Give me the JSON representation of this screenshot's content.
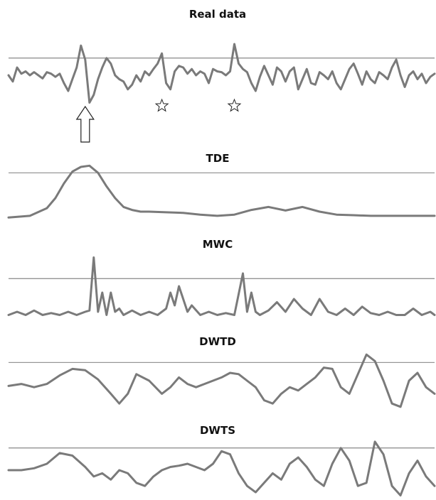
{
  "chart_data": [
    {
      "type": "line",
      "title": "Real data",
      "xlim": [
        0,
        100
      ],
      "ylim": [
        0,
        1
      ],
      "threshold": 0.62,
      "annotations": [
        {
          "kind": "arrow-up",
          "x": 18
        },
        {
          "kind": "star",
          "x": 36
        },
        {
          "kind": "star",
          "x": 53
        }
      ],
      "x": [
        0,
        1,
        2,
        3,
        4,
        5,
        6,
        7,
        8,
        9,
        10,
        11,
        12,
        13,
        14,
        15,
        16,
        17,
        18,
        19,
        20,
        21,
        22,
        23,
        24,
        25,
        26,
        27,
        28,
        29,
        30,
        31,
        32,
        33,
        34,
        35,
        36,
        37,
        38,
        39,
        40,
        41,
        42,
        43,
        44,
        45,
        46,
        47,
        48,
        49,
        50,
        51,
        52,
        53,
        54,
        55,
        56,
        57,
        58,
        59,
        60,
        61,
        62,
        63,
        64,
        65,
        66,
        67,
        68,
        69,
        70,
        71,
        72,
        73,
        74,
        75,
        76,
        77,
        78,
        79,
        80,
        81,
        82,
        83,
        84,
        85,
        86,
        87,
        88,
        89,
        90,
        91,
        92,
        93,
        94,
        95,
        96,
        97,
        98,
        99,
        100
      ],
      "values": [
        0.4,
        0.32,
        0.5,
        0.42,
        0.45,
        0.4,
        0.44,
        0.4,
        0.36,
        0.44,
        0.42,
        0.38,
        0.42,
        0.3,
        0.2,
        0.35,
        0.5,
        0.78,
        0.6,
        0.05,
        0.15,
        0.35,
        0.5,
        0.62,
        0.55,
        0.4,
        0.35,
        0.32,
        0.22,
        0.28,
        0.4,
        0.32,
        0.45,
        0.4,
        0.48,
        0.55,
        0.68,
        0.3,
        0.22,
        0.45,
        0.52,
        0.5,
        0.42,
        0.48,
        0.4,
        0.45,
        0.42,
        0.3,
        0.48,
        0.45,
        0.44,
        0.4,
        0.45,
        0.8,
        0.55,
        0.48,
        0.44,
        0.3,
        0.2,
        0.38,
        0.52,
        0.4,
        0.28,
        0.5,
        0.45,
        0.32,
        0.45,
        0.5,
        0.22,
        0.35,
        0.48,
        0.3,
        0.28,
        0.44,
        0.4,
        0.35,
        0.45,
        0.3,
        0.22,
        0.35,
        0.48,
        0.55,
        0.42,
        0.28,
        0.45,
        0.35,
        0.3,
        0.44,
        0.4,
        0.35,
        0.5,
        0.6,
        0.4,
        0.25,
        0.4,
        0.45,
        0.35,
        0.42,
        0.3,
        0.38,
        0.42
      ]
    },
    {
      "type": "line",
      "title": "TDE",
      "xlim": [
        0,
        100
      ],
      "ylim": [
        0,
        1
      ],
      "threshold": 0.78,
      "x": [
        0,
        5,
        9,
        11,
        13,
        15,
        17,
        19,
        21,
        23,
        25,
        27,
        29,
        31,
        33,
        37,
        41,
        45,
        49,
        53,
        57,
        61,
        65,
        69,
        73,
        77,
        81,
        85,
        89,
        93,
        100
      ],
      "values": [
        0.02,
        0.05,
        0.18,
        0.35,
        0.6,
        0.8,
        0.88,
        0.9,
        0.78,
        0.55,
        0.35,
        0.2,
        0.15,
        0.12,
        0.12,
        0.11,
        0.1,
        0.07,
        0.05,
        0.07,
        0.15,
        0.2,
        0.14,
        0.2,
        0.12,
        0.07,
        0.06,
        0.05,
        0.05,
        0.05,
        0.05
      ]
    },
    {
      "type": "line",
      "title": "MWC",
      "xlim": [
        0,
        100
      ],
      "ylim": [
        0,
        1
      ],
      "threshold": 0.62,
      "x": [
        0,
        2,
        4,
        6,
        8,
        10,
        12,
        14,
        16,
        18,
        19,
        20,
        21,
        22,
        23,
        24,
        25,
        26,
        27,
        29,
        31,
        33,
        35,
        37,
        38,
        39,
        40,
        41,
        42,
        43,
        45,
        47,
        49,
        51,
        53,
        55,
        56,
        57,
        58,
        59,
        61,
        63,
        65,
        67,
        69,
        71,
        73,
        75,
        77,
        79,
        81,
        83,
        85,
        87,
        89,
        91,
        93,
        95,
        97,
        99,
        100
      ],
      "values": [
        0.05,
        0.1,
        0.05,
        0.12,
        0.05,
        0.08,
        0.05,
        0.1,
        0.05,
        0.1,
        0.12,
        0.95,
        0.1,
        0.4,
        0.05,
        0.4,
        0.1,
        0.15,
        0.05,
        0.12,
        0.05,
        0.1,
        0.05,
        0.15,
        0.4,
        0.2,
        0.5,
        0.3,
        0.1,
        0.2,
        0.05,
        0.1,
        0.05,
        0.08,
        0.05,
        0.7,
        0.1,
        0.4,
        0.1,
        0.05,
        0.12,
        0.25,
        0.1,
        0.3,
        0.15,
        0.05,
        0.3,
        0.1,
        0.05,
        0.15,
        0.05,
        0.18,
        0.08,
        0.05,
        0.1,
        0.05,
        0.05,
        0.15,
        0.05,
        0.1,
        0.05
      ]
    },
    {
      "type": "line",
      "title": "DWTD",
      "xlim": [
        0,
        100
      ],
      "ylim": [
        0,
        1
      ],
      "threshold": 0.78,
      "x": [
        0,
        3,
        6,
        9,
        12,
        15,
        18,
        21,
        24,
        26,
        28,
        30,
        33,
        36,
        38,
        40,
        42,
        44,
        46,
        48,
        50,
        52,
        54,
        56,
        58,
        60,
        62,
        64,
        66,
        68,
        70,
        72,
        74,
        76,
        78,
        80,
        82,
        84,
        86,
        88,
        90,
        92,
        94,
        96,
        98,
        100
      ],
      "values": [
        0.42,
        0.45,
        0.4,
        0.45,
        0.58,
        0.68,
        0.66,
        0.52,
        0.3,
        0.15,
        0.3,
        0.6,
        0.5,
        0.3,
        0.4,
        0.55,
        0.45,
        0.4,
        0.45,
        0.5,
        0.55,
        0.62,
        0.6,
        0.5,
        0.4,
        0.2,
        0.15,
        0.3,
        0.4,
        0.35,
        0.45,
        0.55,
        0.7,
        0.68,
        0.4,
        0.3,
        0.6,
        0.9,
        0.8,
        0.5,
        0.15,
        0.1,
        0.5,
        0.62,
        0.4,
        0.3
      ]
    },
    {
      "type": "line",
      "title": "DWTS",
      "xlim": [
        0,
        100
      ],
      "ylim": [
        0,
        1
      ],
      "threshold": 0.8,
      "x": [
        0,
        3,
        6,
        9,
        12,
        15,
        18,
        20,
        22,
        24,
        26,
        28,
        30,
        32,
        34,
        36,
        38,
        40,
        42,
        44,
        46,
        48,
        50,
        52,
        54,
        56,
        58,
        60,
        62,
        64,
        66,
        68,
        70,
        72,
        74,
        76,
        78,
        80,
        82,
        84,
        86,
        88,
        90,
        92,
        94,
        96,
        98,
        100
      ],
      "values": [
        0.45,
        0.45,
        0.48,
        0.55,
        0.72,
        0.68,
        0.5,
        0.35,
        0.4,
        0.3,
        0.45,
        0.4,
        0.25,
        0.2,
        0.35,
        0.45,
        0.5,
        0.52,
        0.55,
        0.5,
        0.45,
        0.55,
        0.75,
        0.7,
        0.4,
        0.2,
        0.1,
        0.25,
        0.4,
        0.3,
        0.55,
        0.65,
        0.5,
        0.3,
        0.2,
        0.55,
        0.8,
        0.6,
        0.2,
        0.25,
        0.9,
        0.7,
        0.2,
        0.05,
        0.4,
        0.6,
        0.35,
        0.2
      ]
    }
  ]
}
